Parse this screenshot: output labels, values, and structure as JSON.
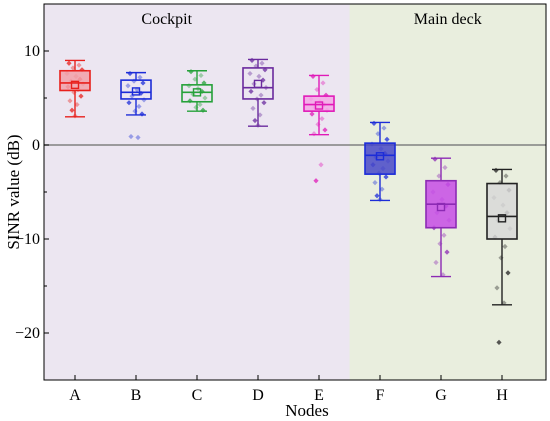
{
  "chart_data": {
    "type": "box",
    "xlabel": "Nodes",
    "ylabel": "SINR value (dB)",
    "ylim": [
      -25,
      15
    ],
    "yticks": [
      10,
      0,
      -10,
      -20
    ],
    "ytick_labels": [
      "10",
      "0",
      "−10",
      "−20"
    ],
    "categories": [
      "A",
      "B",
      "C",
      "D",
      "E",
      "F",
      "G",
      "H"
    ],
    "regions": [
      {
        "label": "Cockpit",
        "nodes": [
          "A",
          "B",
          "C",
          "D",
          "E"
        ],
        "color": "#ece6f1"
      },
      {
        "label": "Main deck",
        "nodes": [
          "F",
          "G",
          "H"
        ],
        "color": "#e9eede"
      }
    ],
    "zero_line": 0,
    "boxes": [
      {
        "node": "A",
        "min": 3.0,
        "q1": 5.8,
        "median": 6.6,
        "mean": 6.4,
        "q3": 7.9,
        "max": 9.0,
        "color": "#e8201c",
        "fill": "#f2a0a8",
        "points": [
          8.7,
          8.5,
          8.2,
          8.0,
          7.6,
          7.3,
          7.0,
          6.8,
          6.5,
          6.2,
          5.9,
          5.6,
          5.2,
          4.7,
          4.3,
          3.7,
          3.1
        ]
      },
      {
        "node": "B",
        "min": 3.2,
        "q1": 4.9,
        "median": 5.6,
        "mean": 5.7,
        "q3": 6.9,
        "max": 7.7,
        "color": "#1c2cd8",
        "fill": "#ffffff",
        "points": [
          7.6,
          7.2,
          6.8,
          6.6,
          6.3,
          5.9,
          5.5,
          5.2,
          4.8,
          4.5,
          4.1,
          3.6,
          3.3,
          0.9,
          0.8
        ]
      },
      {
        "node": "C",
        "min": 3.6,
        "q1": 4.6,
        "median": 5.6,
        "mean": 5.6,
        "q3": 6.4,
        "max": 7.9,
        "color": "#26a13a",
        "fill": "#ffffff",
        "points": [
          7.8,
          7.4,
          7.0,
          6.6,
          6.3,
          6.0,
          5.7,
          5.4,
          5.0,
          4.7,
          4.3,
          4.0,
          3.7
        ]
      },
      {
        "node": "D",
        "min": 2.0,
        "q1": 4.9,
        "median": 6.1,
        "mean": 6.5,
        "q3": 8.2,
        "max": 9.1,
        "color": "#6a2a9e",
        "fill": "#ffffff",
        "points": [
          9.0,
          8.7,
          8.4,
          8.0,
          7.6,
          7.3,
          6.9,
          6.5,
          6.1,
          5.7,
          5.3,
          4.9,
          4.5,
          3.9,
          3.2,
          2.6,
          2.1
        ]
      },
      {
        "node": "E",
        "min": 1.1,
        "q1": 3.6,
        "median": 4.3,
        "mean": 4.2,
        "q3": 5.2,
        "max": 7.4,
        "color": "#e01ab8",
        "fill": "#f5a6e6",
        "points": [
          7.3,
          6.6,
          5.9,
          5.3,
          4.9,
          4.6,
          4.3,
          4.0,
          3.7,
          3.3,
          2.8,
          2.2,
          1.6,
          1.2,
          -2.1,
          -3.8
        ]
      },
      {
        "node": "F",
        "min": -5.9,
        "q1": -3.1,
        "median": -1.1,
        "mean": -1.2,
        "q3": 0.2,
        "max": 2.4,
        "color": "#1c2cd8",
        "fill": "#4848c8",
        "points": [
          2.3,
          1.8,
          1.2,
          0.6,
          0.1,
          -0.4,
          -0.9,
          -1.3,
          -1.7,
          -2.1,
          -2.5,
          -3.0,
          -3.4,
          -4.0,
          -4.7,
          -5.4,
          -5.8
        ]
      },
      {
        "node": "G",
        "min": -14.0,
        "q1": -8.8,
        "median": -6.3,
        "mean": -6.6,
        "q3": -3.8,
        "max": -1.4,
        "color": "#8c2ab4",
        "fill": "#c74ce6",
        "points": [
          -1.5,
          -2.4,
          -3.3,
          -4.2,
          -5.0,
          -5.8,
          -6.5,
          -7.2,
          -8.0,
          -8.8,
          -9.6,
          -10.5,
          -11.4,
          -12.5,
          -13.8
        ]
      },
      {
        "node": "H",
        "min": -17.0,
        "q1": -10.0,
        "median": -7.6,
        "mean": -7.8,
        "q3": -4.1,
        "max": -2.6,
        "color": "#222222",
        "fill": "#d8d8d8",
        "points": [
          -2.7,
          -3.3,
          -4.0,
          -4.8,
          -5.6,
          -6.4,
          -7.2,
          -8.0,
          -8.9,
          -9.8,
          -10.8,
          -12.0,
          -13.6,
          -15.2,
          -16.8,
          -21.0
        ]
      }
    ]
  }
}
